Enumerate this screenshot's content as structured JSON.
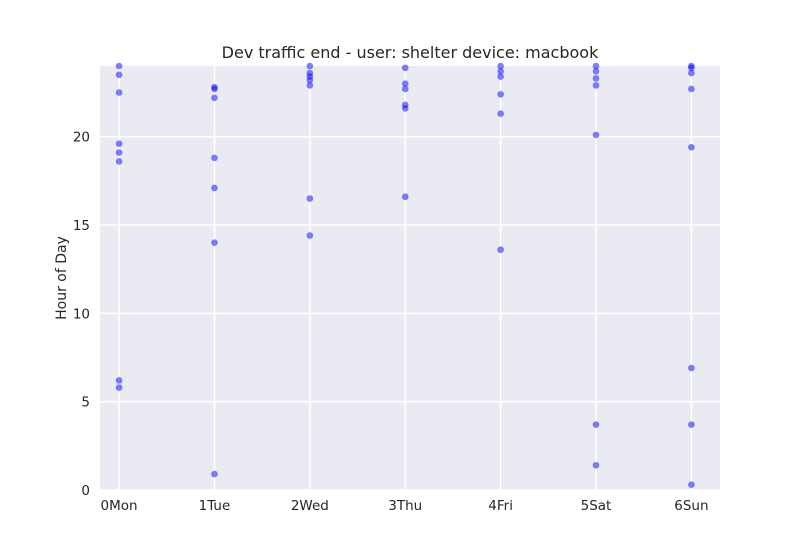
{
  "chart_data": {
    "type": "scatter",
    "title": "Dev traffic end - user: shelter device: macbook",
    "xlabel": "",
    "ylabel": "Hour of Day",
    "xlim": [
      -0.2,
      6.3
    ],
    "ylim": [
      0,
      24
    ],
    "grid": true,
    "point_color": "#0000ff",
    "plot_bg": "#eaeaf2",
    "x_ticks": [
      {
        "value": 0,
        "label": "0Mon"
      },
      {
        "value": 1,
        "label": "1Tue"
      },
      {
        "value": 2,
        "label": "2Wed"
      },
      {
        "value": 3,
        "label": "3Thu"
      },
      {
        "value": 4,
        "label": "4Fri"
      },
      {
        "value": 5,
        "label": "5Sat"
      },
      {
        "value": 6,
        "label": "6Sun"
      }
    ],
    "y_ticks": [
      {
        "value": 0,
        "label": "0"
      },
      {
        "value": 5,
        "label": "5"
      },
      {
        "value": 10,
        "label": "10"
      },
      {
        "value": 15,
        "label": "15"
      },
      {
        "value": 20,
        "label": "20"
      }
    ],
    "points": [
      {
        "x": 0,
        "y": 24.0
      },
      {
        "x": 0,
        "y": 23.5
      },
      {
        "x": 0,
        "y": 22.5
      },
      {
        "x": 0,
        "y": 19.6
      },
      {
        "x": 0,
        "y": 19.1
      },
      {
        "x": 0,
        "y": 18.6
      },
      {
        "x": 0,
        "y": 6.2
      },
      {
        "x": 0,
        "y": 5.8
      },
      {
        "x": 1,
        "y": 22.8
      },
      {
        "x": 1,
        "y": 22.7
      },
      {
        "x": 1,
        "y": 22.2
      },
      {
        "x": 1,
        "y": 18.8
      },
      {
        "x": 1,
        "y": 17.1
      },
      {
        "x": 1,
        "y": 14.0
      },
      {
        "x": 1,
        "y": 0.9
      },
      {
        "x": 2,
        "y": 24.0
      },
      {
        "x": 2,
        "y": 23.6
      },
      {
        "x": 2,
        "y": 23.4
      },
      {
        "x": 2,
        "y": 23.2
      },
      {
        "x": 2,
        "y": 22.9
      },
      {
        "x": 2,
        "y": 16.5
      },
      {
        "x": 2,
        "y": 14.4
      },
      {
        "x": 3,
        "y": 23.9
      },
      {
        "x": 3,
        "y": 23.0
      },
      {
        "x": 3,
        "y": 22.7
      },
      {
        "x": 3,
        "y": 21.8
      },
      {
        "x": 3,
        "y": 21.6
      },
      {
        "x": 3,
        "y": 16.6
      },
      {
        "x": 4,
        "y": 24.0
      },
      {
        "x": 4,
        "y": 23.7
      },
      {
        "x": 4,
        "y": 23.4
      },
      {
        "x": 4,
        "y": 22.4
      },
      {
        "x": 4,
        "y": 21.3
      },
      {
        "x": 4,
        "y": 13.6
      },
      {
        "x": 5,
        "y": 24.0
      },
      {
        "x": 5,
        "y": 23.7
      },
      {
        "x": 5,
        "y": 23.3
      },
      {
        "x": 5,
        "y": 22.9
      },
      {
        "x": 5,
        "y": 20.1
      },
      {
        "x": 5,
        "y": 3.7
      },
      {
        "x": 5,
        "y": 1.4
      },
      {
        "x": 6,
        "y": 24.0
      },
      {
        "x": 6,
        "y": 23.9
      },
      {
        "x": 6,
        "y": 23.6
      },
      {
        "x": 6,
        "y": 22.7
      },
      {
        "x": 6,
        "y": 19.4
      },
      {
        "x": 6,
        "y": 6.9
      },
      {
        "x": 6,
        "y": 3.7
      },
      {
        "x": 6,
        "y": 0.3
      }
    ]
  }
}
